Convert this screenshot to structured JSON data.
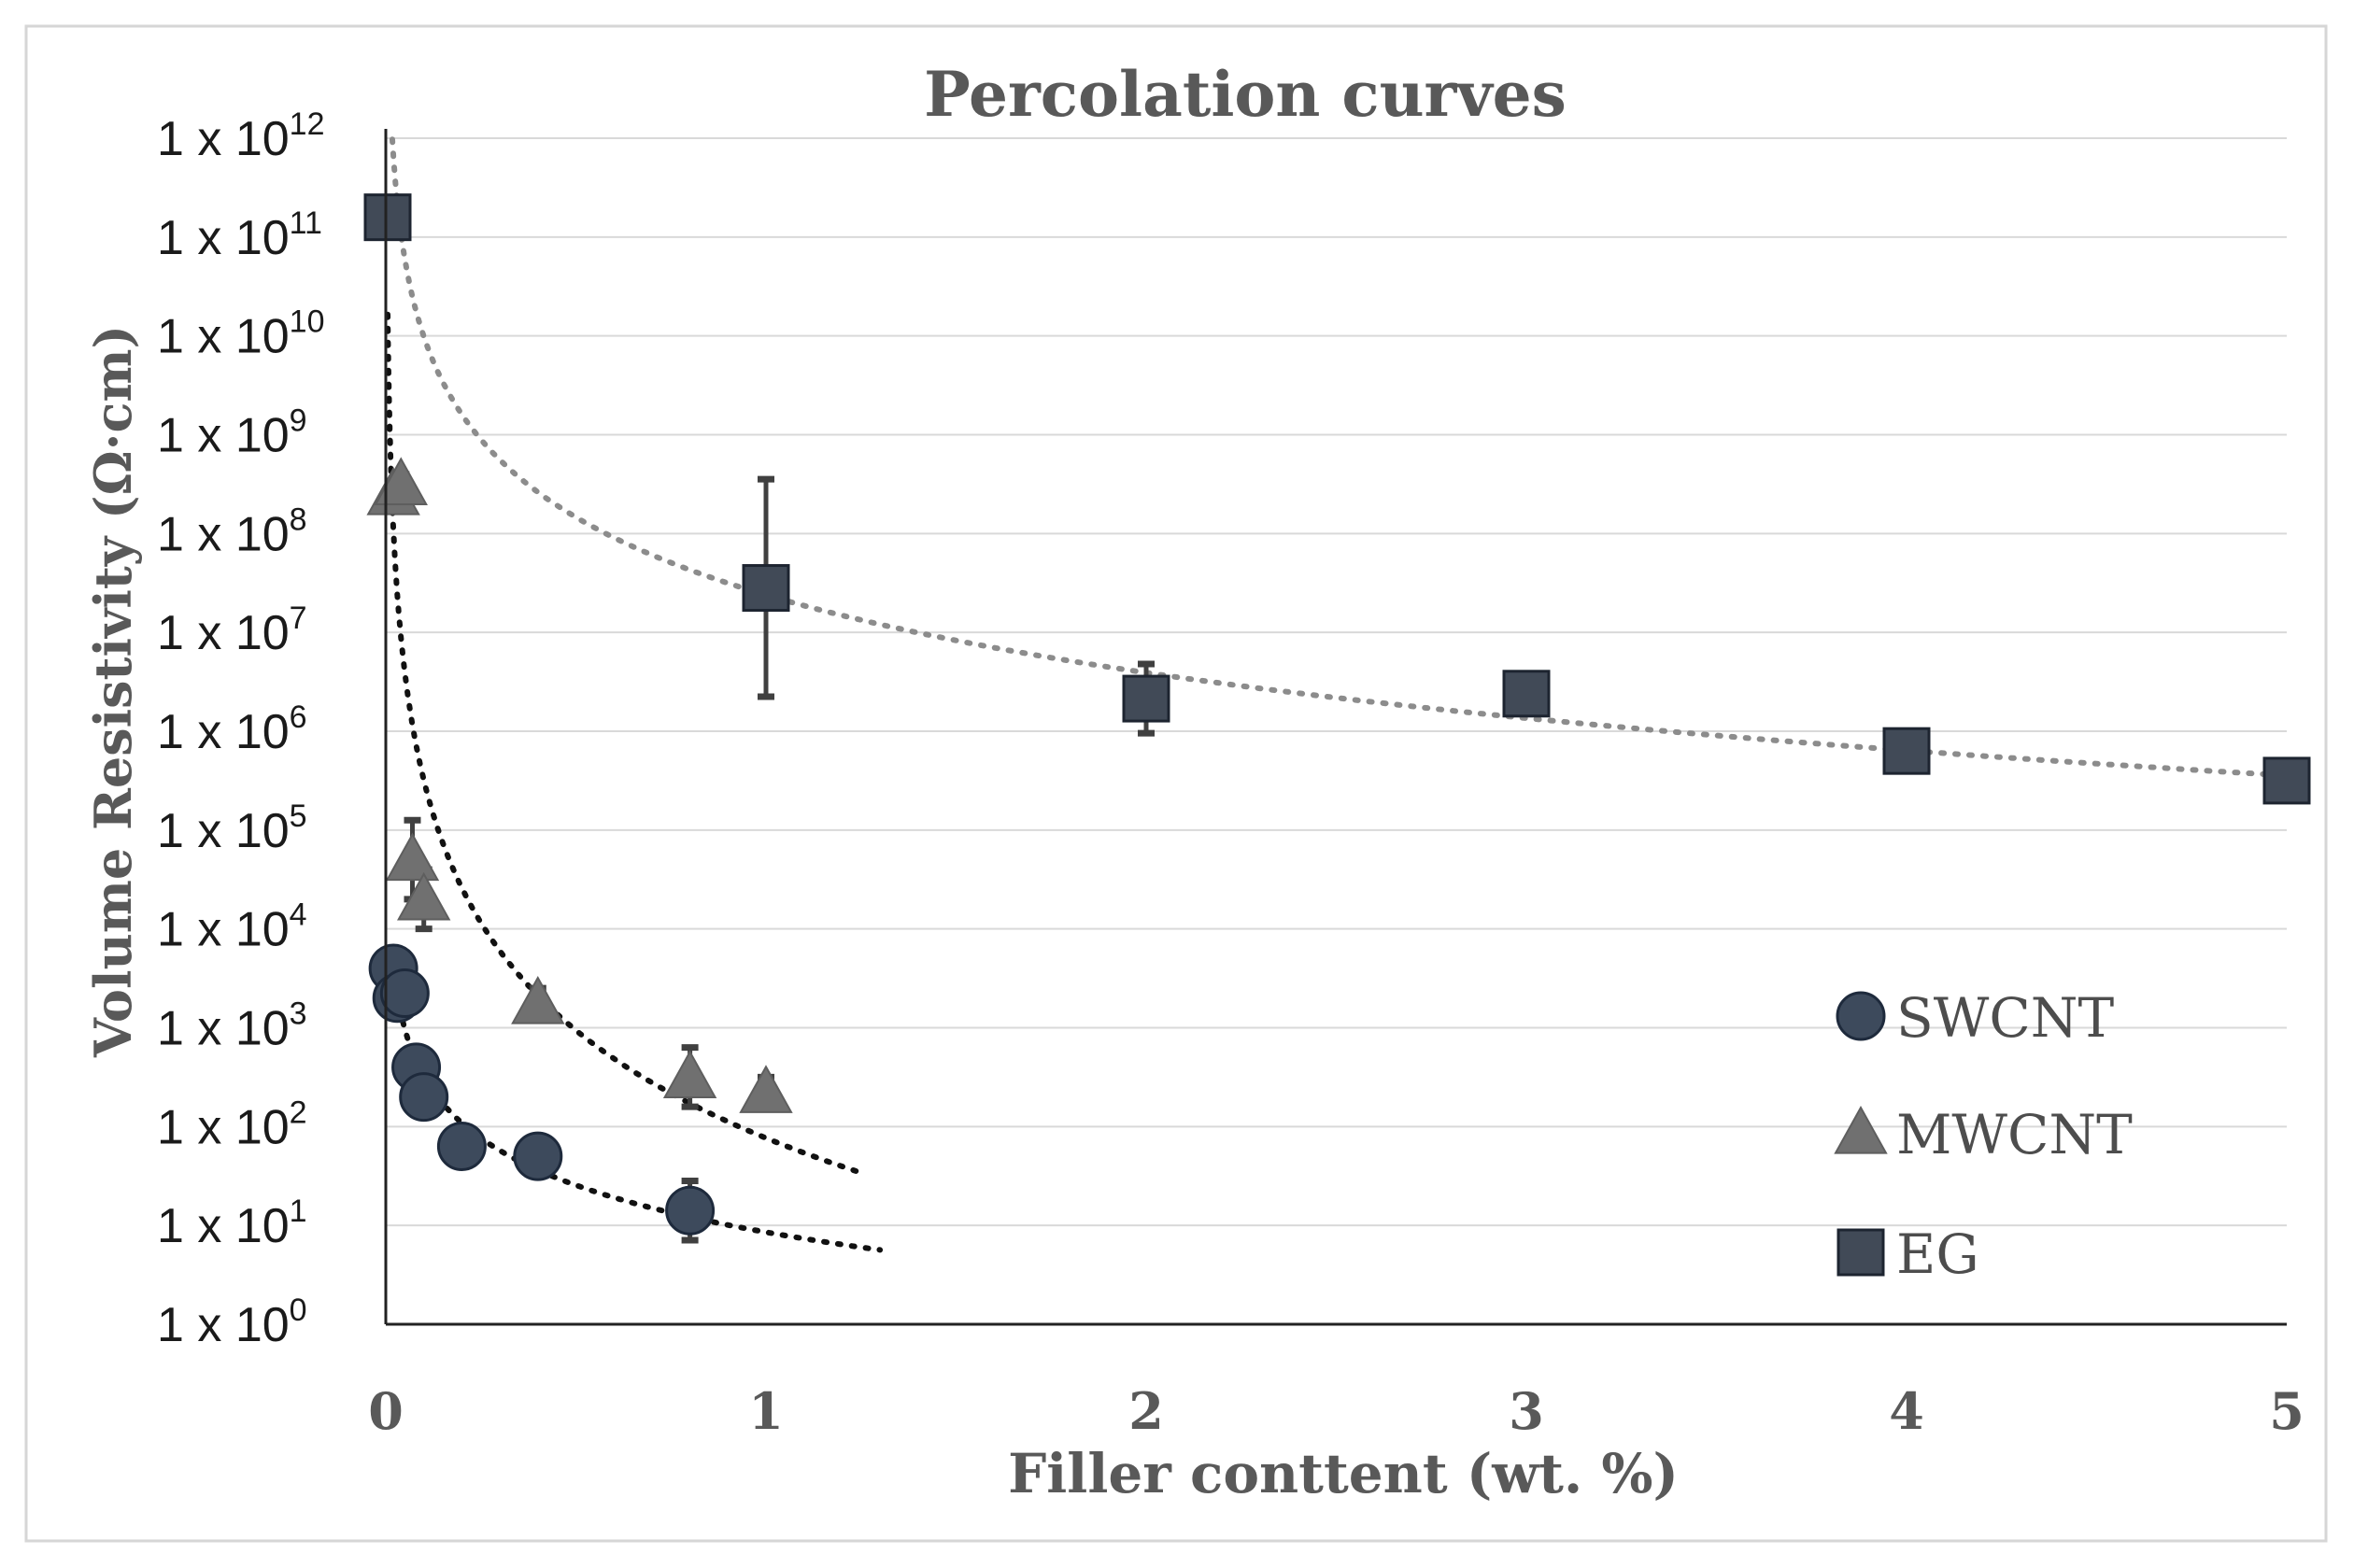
{
  "chart_data": {
    "type": "scatter",
    "title": "Percolation curves",
    "xlabel": "Filler conttent (wt. %)",
    "ylabel": "Volume Resistivity  (Ω·cm)",
    "x_ticks": [
      "0",
      "1",
      "2",
      "3",
      "4",
      "5"
    ],
    "xlim": [
      0,
      5
    ],
    "y_scale": "log",
    "ylim_exponent": [
      0,
      12
    ],
    "y_tick_base": "1 x 10",
    "y_tick_exponents": [
      "0",
      "1",
      "2",
      "3",
      "4",
      "5",
      "6",
      "7",
      "8",
      "9",
      "10",
      "11",
      "12"
    ],
    "grid": "horizontal",
    "legend_position": "right",
    "series": [
      {
        "name": "SWCNT",
        "marker": "circle",
        "color": "#3d4a5c",
        "x": [
          0.02,
          0.03,
          0.05,
          0.08,
          0.1,
          0.2,
          0.4,
          0.8
        ],
        "y_log10": [
          3.6,
          3.3,
          3.35,
          2.6,
          2.3,
          1.8,
          1.7,
          1.15
        ],
        "err_log10": [
          0.2,
          0.2,
          0.15,
          0.15,
          0.1,
          0.1,
          0.1,
          0.3
        ],
        "trendline_log10": {
          "type": "dotted",
          "color": "#111111",
          "x_range": [
            0.02,
            1.3
          ]
        }
      },
      {
        "name": "MWCNT",
        "marker": "triangle",
        "color": "#707070",
        "x": [
          0.02,
          0.04,
          0.07,
          0.1,
          0.4,
          0.8,
          1.0
        ],
        "y_log10": [
          8.4,
          8.5,
          4.7,
          4.3,
          3.25,
          2.5,
          2.35
        ],
        "err_log10": [
          0.1,
          0.1,
          0.4,
          0.3,
          0.15,
          0.3,
          0.15
        ],
        "trendline_log10": {
          "type": "dotted",
          "color": "#111111",
          "x_range": [
            0.005,
            1.25
          ]
        }
      },
      {
        "name": "EG",
        "marker": "square",
        "color": "#414a57",
        "x": [
          0.0,
          1.0,
          2.0,
          3.0,
          4.0,
          5.0
        ],
        "y_log10": [
          11.2,
          7.45,
          6.33,
          6.38,
          5.8,
          5.5
        ],
        "err_log10": [
          0.1,
          1.1,
          0.35,
          0.2,
          0.1,
          0.15
        ],
        "trendline_log10": {
          "type": "dotted",
          "color": "#8c8c8c",
          "x_range": [
            0.005,
            5.0
          ]
        }
      }
    ]
  }
}
